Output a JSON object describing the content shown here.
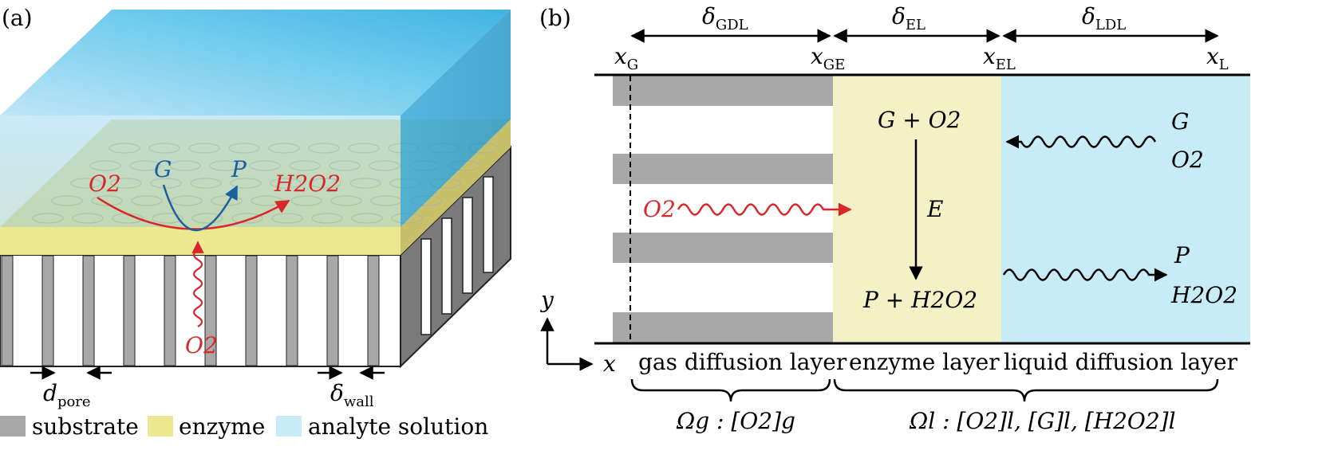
{
  "panel_a": {
    "label": "(a)",
    "reaction": {
      "o2_left": "O2",
      "g": "G",
      "p": "P",
      "h2o2": "H2O2",
      "o2_bottom": "O2"
    },
    "d_pore": {
      "symbol": "d",
      "subscript": "pore"
    },
    "delta_wall": {
      "symbol": "δ",
      "subscript": "wall"
    },
    "legend": [
      {
        "label": "substrate",
        "color": "#a8a8a8"
      },
      {
        "label": "enzyme",
        "color": "#ece88f"
      },
      {
        "label": "analyte solution",
        "color": "#c8ebf8"
      }
    ]
  },
  "panel_b": {
    "label": "(b)",
    "thickness": [
      {
        "symbol": "δ",
        "subscript": "GDL"
      },
      {
        "symbol": "δ",
        "subscript": "EL"
      },
      {
        "symbol": "δ",
        "subscript": "LDL"
      }
    ],
    "positions": [
      {
        "symbol": "x",
        "subscript": "G"
      },
      {
        "symbol": "x",
        "subscript": "GE"
      },
      {
        "symbol": "x",
        "subscript": "EL"
      },
      {
        "symbol": "x",
        "subscript": "L"
      }
    ],
    "enzyme_reaction": {
      "top": "G + O2",
      "catalyst": "E",
      "bottom": "P + H2O2"
    },
    "gas_in": "O2",
    "liquid_in": [
      "G",
      "O2"
    ],
    "liquid_out": [
      "P",
      "H2O2"
    ],
    "axis_y": "y",
    "axis_x": "x",
    "layers": [
      "gas diffusion layer",
      "enzyme layer",
      "liquid diffusion layer"
    ],
    "domains": {
      "gas": "Ωg : [O2]g",
      "liquid": "Ωl : [O2]l, [G]l, [H2O2]l"
    },
    "colors": {
      "substrate": "#a8a8a8",
      "enzyme": "#f5f1c6",
      "liquid": "#c8ebf8",
      "gas_arrow": "#d9262b"
    }
  }
}
